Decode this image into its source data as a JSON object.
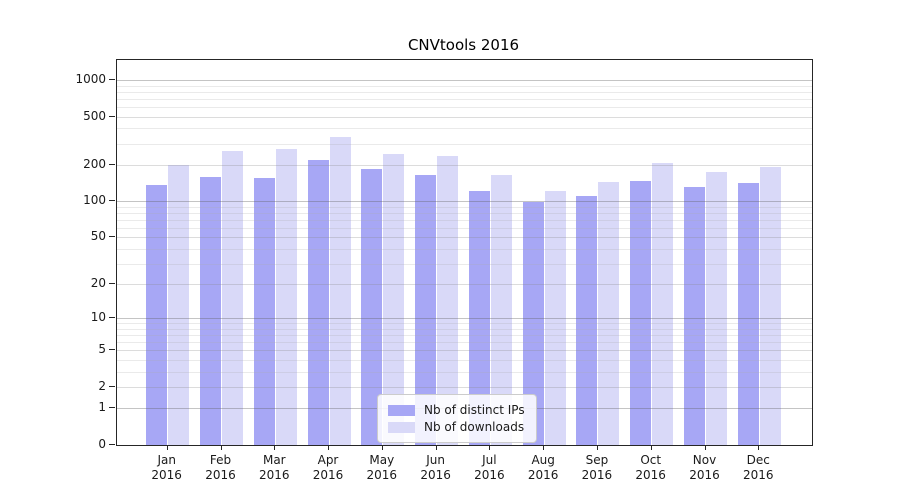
{
  "title": "CNVtools 2016",
  "legend": {
    "entries": [
      "Nb of distinct IPs",
      "Nb of downloads"
    ]
  },
  "colors": {
    "distinct_ips": "#a7a7f5",
    "downloads": "#d9d9f8",
    "axis": "#262626"
  },
  "chart_data": {
    "type": "bar",
    "title": "CNVtools 2016",
    "xlabel": "",
    "ylabel": "",
    "categories": [
      "Jan",
      "Feb",
      "Mar",
      "Apr",
      "May",
      "Jun",
      "Jul",
      "Aug",
      "Sep",
      "Oct",
      "Nov",
      "Dec"
    ],
    "year": "2016",
    "series": [
      {
        "name": "Nb of distinct IPs",
        "color": "#a7a7f5",
        "values": [
          137,
          158,
          155,
          220,
          185,
          165,
          121,
          99,
          110,
          146,
          130,
          141
        ]
      },
      {
        "name": "Nb of downloads",
        "color": "#d9d9f8",
        "values": [
          199,
          262,
          272,
          340,
          248,
          236,
          165,
          121,
          145,
          209,
          174,
          192
        ]
      }
    ],
    "y_scale": "log10(1+v)",
    "y_ticks": [
      0,
      1,
      2,
      5,
      10,
      20,
      50,
      100,
      200,
      500,
      1000
    ],
    "y_minor_gridlines": [
      3,
      4,
      6,
      7,
      8,
      9,
      30,
      40,
      60,
      70,
      80,
      90,
      300,
      400,
      600,
      700,
      800,
      900
    ],
    "ylim": [
      0,
      1470
    ],
    "grid": true,
    "legend_position": "lower center"
  }
}
